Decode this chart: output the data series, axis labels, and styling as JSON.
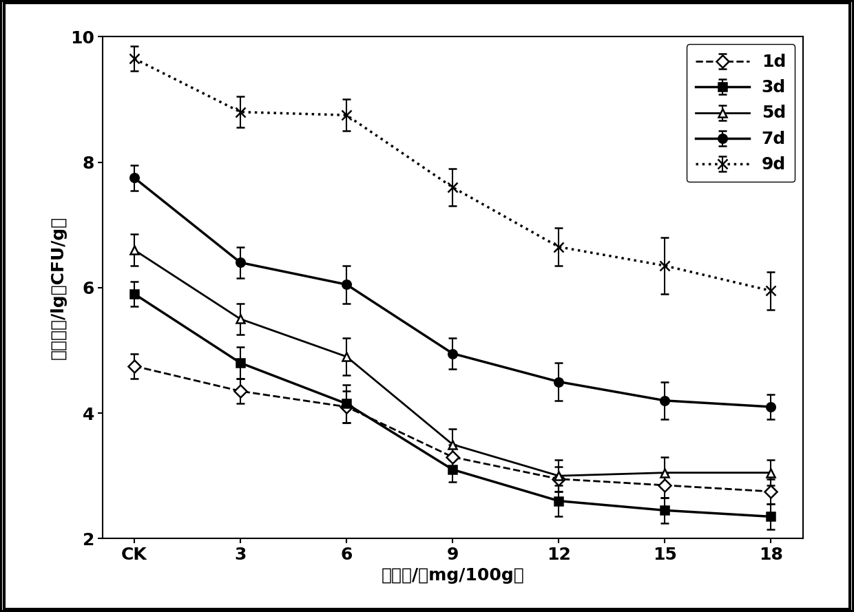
{
  "x_labels": [
    "CK",
    "3",
    "6",
    "9",
    "12",
    "15",
    "18"
  ],
  "x_positions": [
    0,
    1,
    2,
    3,
    4,
    5,
    6
  ],
  "series": {
    "1d": {
      "y": [
        4.75,
        4.35,
        4.1,
        3.3,
        2.95,
        2.85,
        2.75
      ],
      "yerr": [
        0.2,
        0.2,
        0.25,
        0.2,
        0.2,
        0.2,
        0.2
      ],
      "linestyle": "--",
      "marker": "D",
      "markersize": 9,
      "marker_fill": "white",
      "linewidth": 2.0,
      "label": "1d"
    },
    "3d": {
      "y": [
        5.9,
        4.8,
        4.15,
        3.1,
        2.6,
        2.45,
        2.35
      ],
      "yerr": [
        0.2,
        0.25,
        0.3,
        0.2,
        0.25,
        0.2,
        0.2
      ],
      "linestyle": "-",
      "marker": "s",
      "markersize": 9,
      "marker_fill": "black",
      "linewidth": 2.5,
      "label": "3d"
    },
    "5d": {
      "y": [
        6.6,
        5.5,
        4.9,
        3.5,
        3.0,
        3.05,
        3.05
      ],
      "yerr": [
        0.25,
        0.25,
        0.3,
        0.25,
        0.25,
        0.25,
        0.2
      ],
      "linestyle": "-",
      "marker": "^",
      "markersize": 9,
      "marker_fill": "white",
      "linewidth": 2.0,
      "label": "5d"
    },
    "7d": {
      "y": [
        7.75,
        6.4,
        6.05,
        4.95,
        4.5,
        4.2,
        4.1
      ],
      "yerr": [
        0.2,
        0.25,
        0.3,
        0.25,
        0.3,
        0.3,
        0.2
      ],
      "linestyle": "-",
      "marker": "o",
      "markersize": 9,
      "marker_fill": "black",
      "linewidth": 2.5,
      "label": "7d"
    },
    "9d": {
      "y": [
        9.65,
        8.8,
        8.75,
        7.6,
        6.65,
        6.35,
        5.95
      ],
      "yerr": [
        0.2,
        0.25,
        0.25,
        0.3,
        0.3,
        0.45,
        0.3
      ],
      "linestyle": ":",
      "marker": "x",
      "markersize": 10,
      "marker_fill": "black",
      "linewidth": 2.5,
      "label": "9d"
    }
  },
  "ylabel": "菌落总数/lg（CFU/g）",
  "xlabel": "添加量/（mg/100g）",
  "ylim": [
    2,
    10
  ],
  "yticks": [
    2,
    4,
    6,
    8,
    10
  ],
  "legend_loc": "upper right",
  "color": "black",
  "background_color": "#ffffff",
  "outer_border": true,
  "figsize": [
    12.4,
    8.89
  ],
  "dpi": 100
}
